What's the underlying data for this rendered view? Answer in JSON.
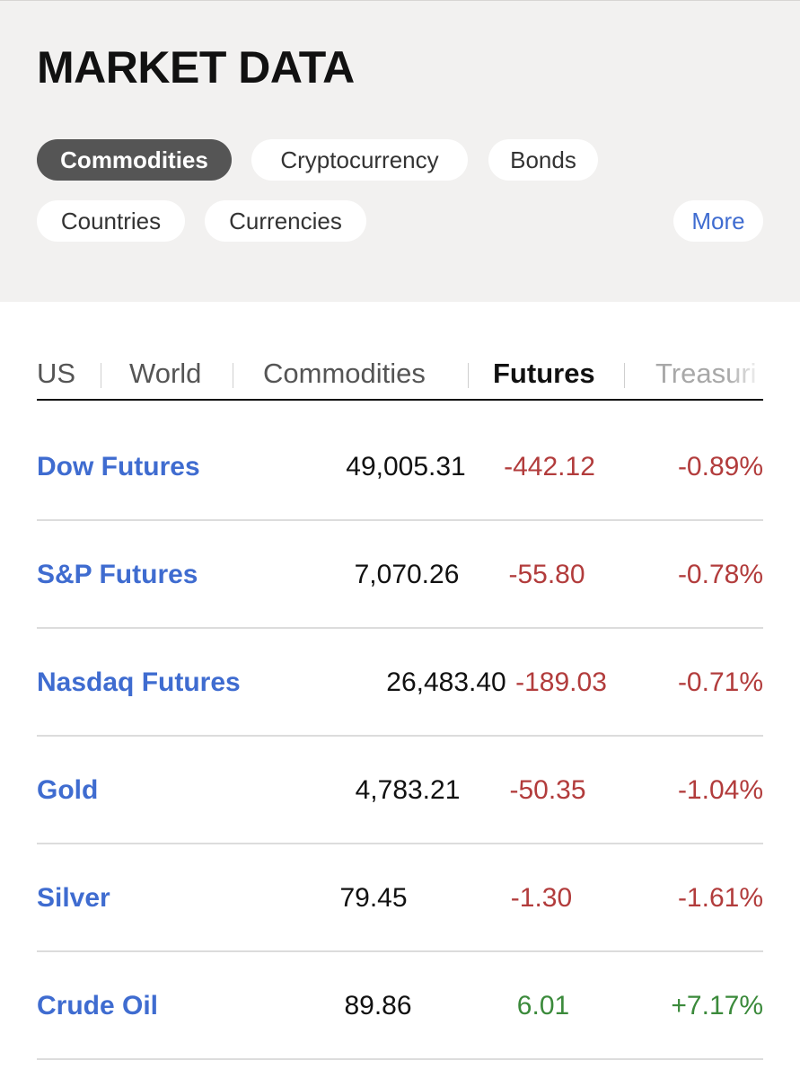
{
  "header": {
    "title": "MARKET DATA",
    "pills": [
      {
        "label": "Commodities",
        "active": true
      },
      {
        "label": "Cryptocurrency",
        "active": false
      },
      {
        "label": "Bonds",
        "active": false
      },
      {
        "label": "Countries",
        "active": false
      },
      {
        "label": "Currencies",
        "active": false
      },
      {
        "label": "More",
        "active": false
      }
    ]
  },
  "tabs": [
    {
      "label": "US",
      "active": false
    },
    {
      "label": "World",
      "active": false
    },
    {
      "label": "Commodities",
      "active": false
    },
    {
      "label": "Futures",
      "active": true
    },
    {
      "label": "Treasuri",
      "active": false
    }
  ],
  "rows": [
    {
      "name": "Dow Futures",
      "price": "49,005.31",
      "change": "-442.12",
      "percent": "-0.89%",
      "direction": "down"
    },
    {
      "name": "S&P Futures",
      "price": "7,070.26",
      "change": "-55.80",
      "percent": "-0.78%",
      "direction": "down"
    },
    {
      "name": "Nasdaq Futures",
      "price": "26,483.40",
      "change": "-189.03",
      "percent": "-0.71%",
      "direction": "down"
    },
    {
      "name": "Gold",
      "price": "4,783.21",
      "change": "-50.35",
      "percent": "-1.04%",
      "direction": "down"
    },
    {
      "name": "Silver",
      "price": "79.45",
      "change": "-1.30",
      "percent": "-1.61%",
      "direction": "down"
    },
    {
      "name": "Crude Oil",
      "price": "89.86",
      "change": "6.01",
      "percent": "+7.17%",
      "direction": "up"
    }
  ],
  "colors": {
    "header_bg": "#f2f1f0",
    "active_pill": "#555555",
    "link_blue": "#3f6cd0",
    "negative": "#b23c3c",
    "positive": "#3b8a3b"
  }
}
